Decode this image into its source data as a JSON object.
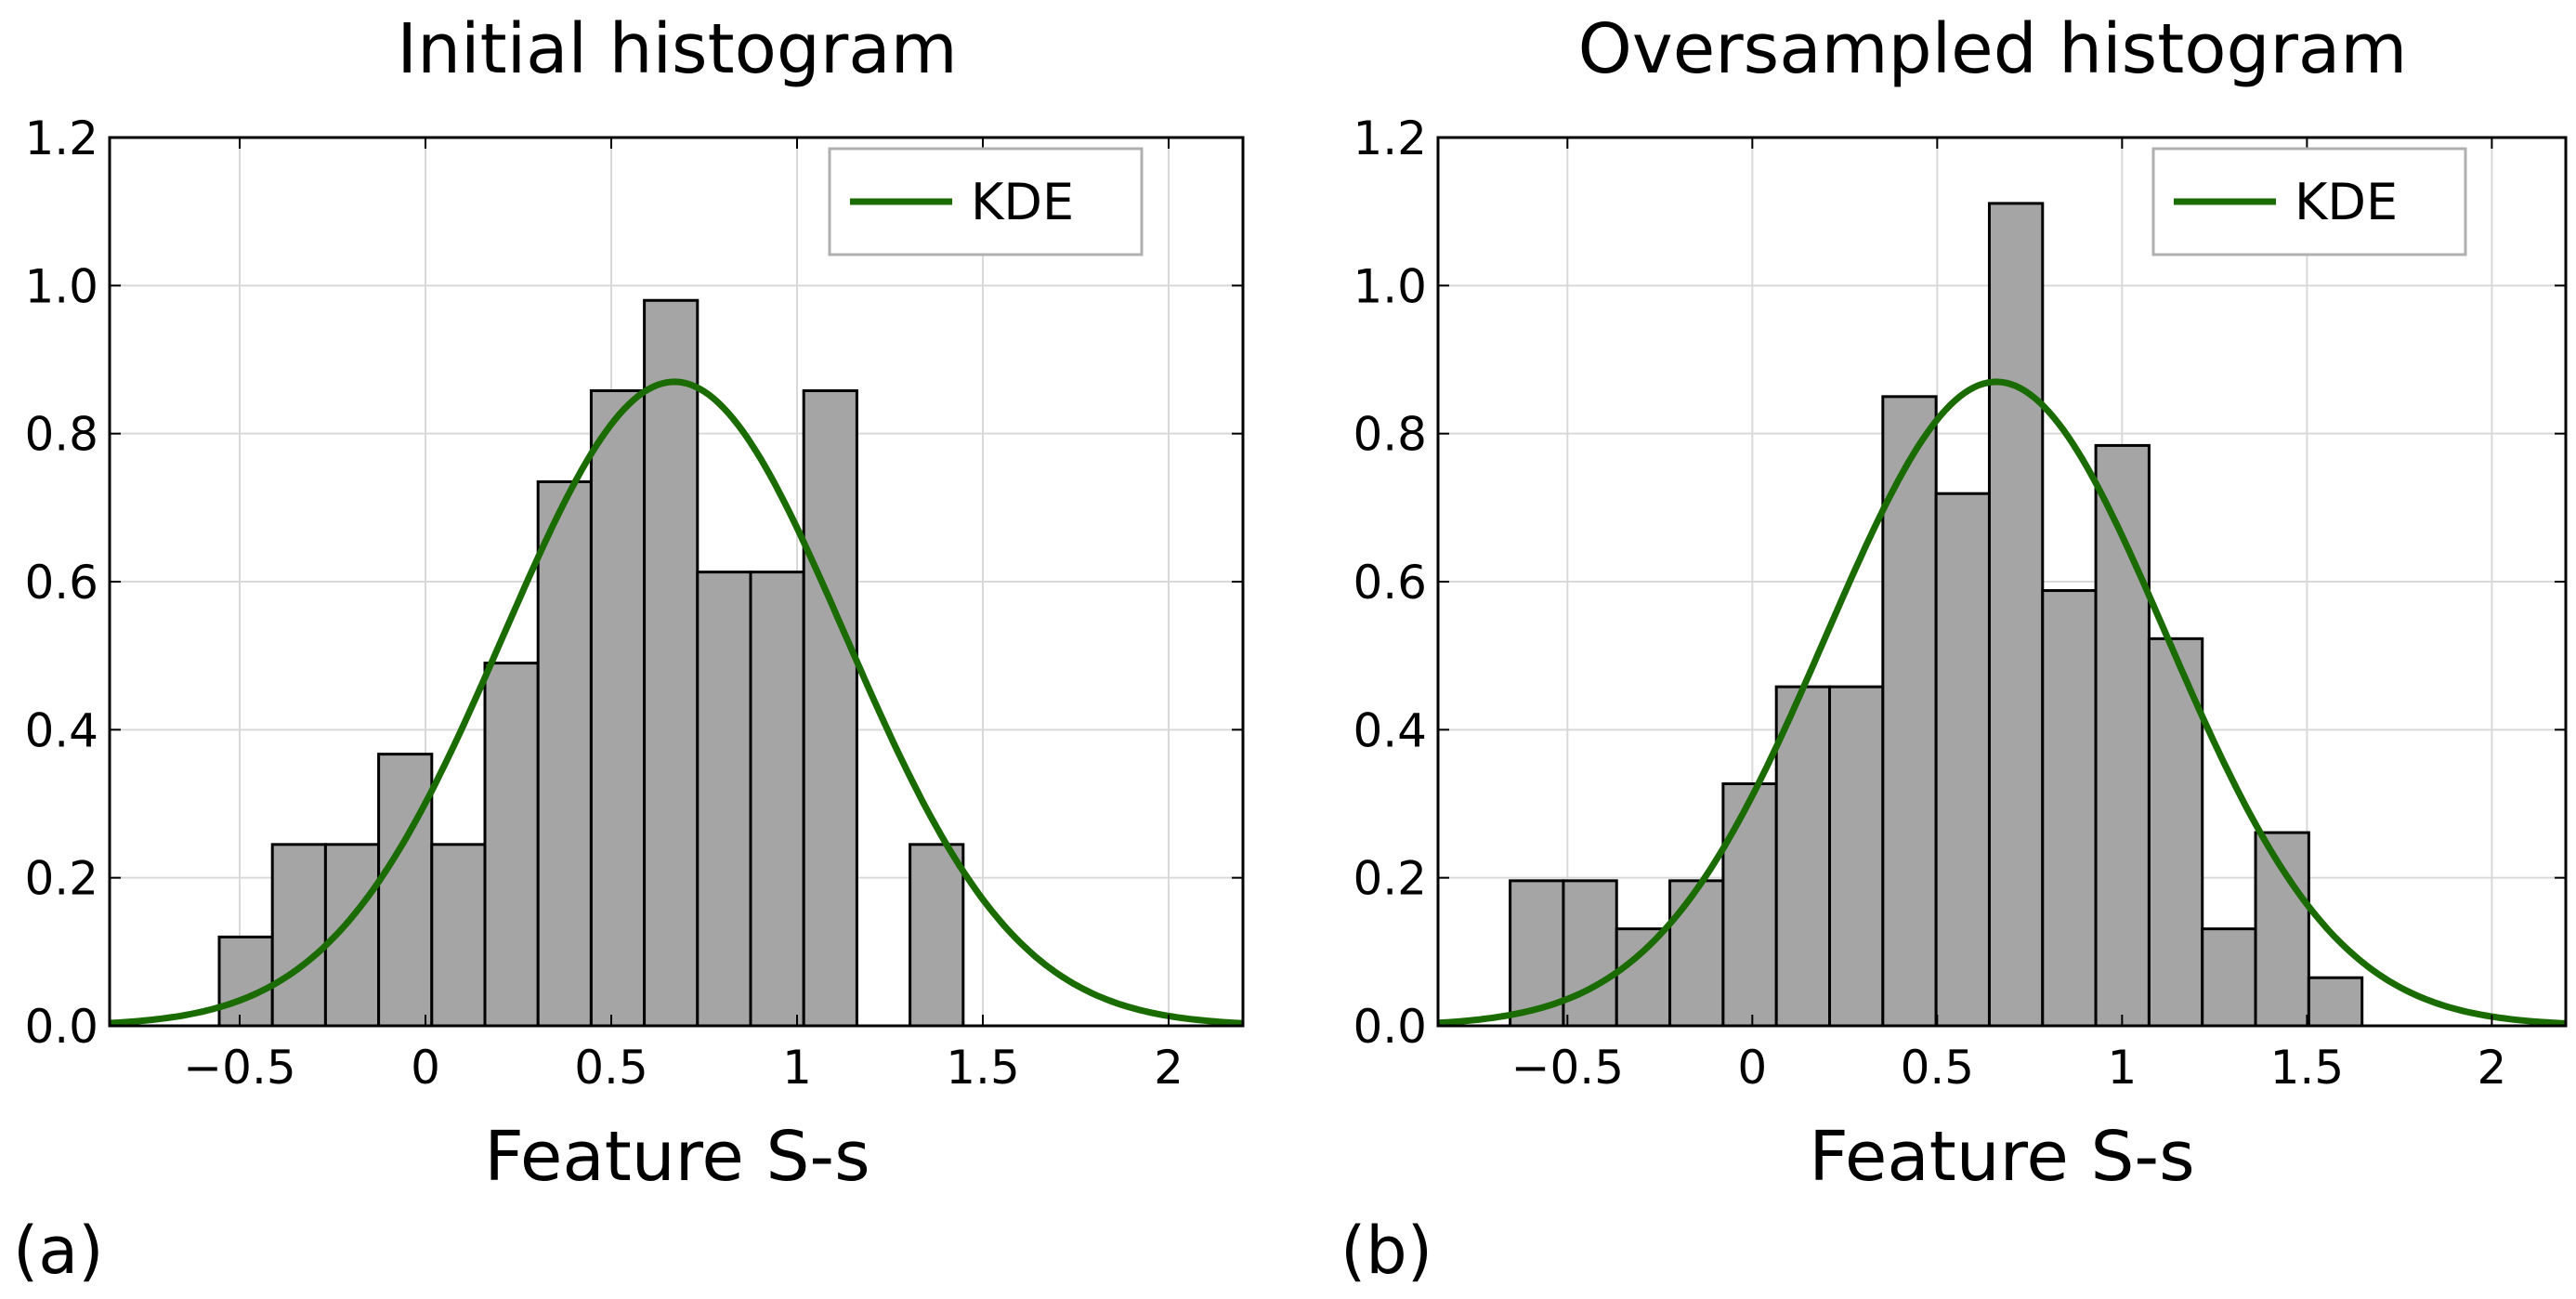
{
  "colors": {
    "bar_fill": "#a5a5a5",
    "bar_edge": "#000000",
    "kde_line": "#1a6b00",
    "grid": "#d9d9d9",
    "axes": "#000000",
    "legend_edge": "#b0b0b0"
  },
  "chart_data": [
    {
      "type": "bar",
      "panel_label": "(a)",
      "title": "Initial histogram",
      "xlabel": "Feature S-s",
      "ylabel": "",
      "xlim": [
        -0.85,
        2.2
      ],
      "ylim": [
        0,
        1.2
      ],
      "xticks": [
        -0.5,
        0,
        0.5,
        1,
        1.5,
        2
      ],
      "xtick_labels": [
        "−0.5",
        "0",
        "0.5",
        "1",
        "1.5",
        "2"
      ],
      "yticks": [
        0,
        0.2,
        0.4,
        0.6,
        0.8,
        1.0,
        1.2
      ],
      "ytick_labels": [
        "0.0",
        "0.2",
        "0.4",
        "0.6",
        "0.8",
        "1.0",
        "1.2"
      ],
      "grid": true,
      "legend": {
        "label": "KDE",
        "placement": "top-right"
      },
      "bin_edges": [
        -0.555,
        -0.412,
        -0.269,
        -0.126,
        0.017,
        0.16,
        0.303,
        0.446,
        0.589,
        0.732,
        0.875,
        1.018,
        1.161,
        1.304,
        1.447
      ],
      "values": [
        0.12,
        0.245,
        0.245,
        0.367,
        0.245,
        0.49,
        0.735,
        0.858,
        0.98,
        0.613,
        0.613,
        0.858,
        0.0,
        0.245
      ],
      "kde": {
        "mean": 0.67,
        "std": 0.46,
        "peak": 0.87
      }
    },
    {
      "type": "bar",
      "panel_label": "(b)",
      "title": "Oversampled histogram",
      "xlabel": "Feature S-s",
      "ylabel": "",
      "xlim": [
        -0.85,
        2.2
      ],
      "ylim": [
        0,
        1.2
      ],
      "xticks": [
        -0.5,
        0,
        0.5,
        1,
        1.5,
        2
      ],
      "xtick_labels": [
        "−0.5",
        "0",
        "0.5",
        "1",
        "1.5",
        "2"
      ],
      "yticks": [
        0,
        0.2,
        0.4,
        0.6,
        0.8,
        1.0,
        1.2
      ],
      "ytick_labels": [
        "0.0",
        "0.2",
        "0.4",
        "0.6",
        "0.8",
        "1.0",
        "1.2"
      ],
      "grid": true,
      "legend": {
        "label": "KDE",
        "placement": "top-right"
      },
      "bin_edges": [
        -0.655,
        -0.511,
        -0.367,
        -0.223,
        -0.079,
        0.065,
        0.209,
        0.353,
        0.497,
        0.641,
        0.785,
        0.929,
        1.073,
        1.217,
        1.361,
        1.505,
        1.649
      ],
      "values": [
        0.196,
        0.196,
        0.131,
        0.196,
        0.327,
        0.458,
        0.458,
        0.85,
        0.719,
        1.111,
        0.588,
        0.784,
        0.523,
        0.131,
        0.261,
        0.065
      ],
      "kde": {
        "mean": 0.66,
        "std": 0.46,
        "peak": 0.87
      }
    }
  ]
}
